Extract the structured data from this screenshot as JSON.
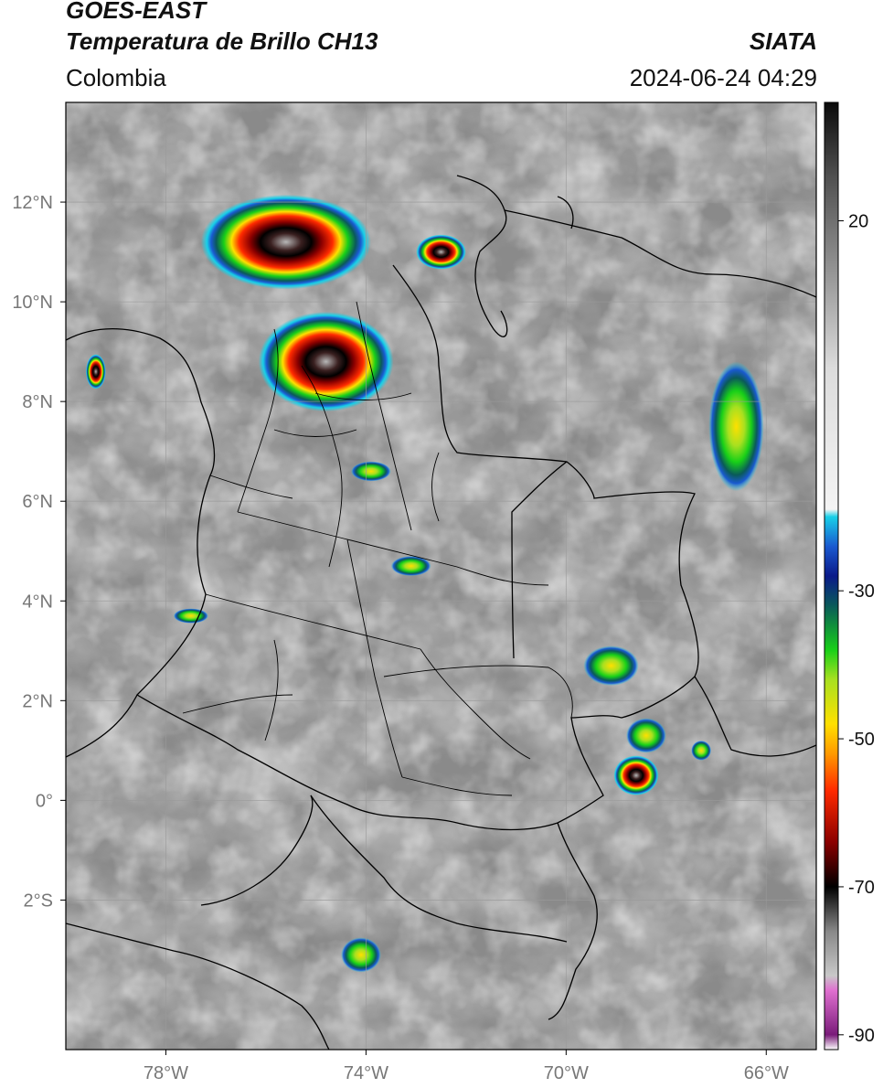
{
  "header": {
    "satellite": "GOES-EAST",
    "product": "Temperatura de Brillo CH13",
    "region": "Colombia",
    "agency": "SIATA",
    "datetime": "2024-06-24 04:29"
  },
  "map": {
    "projection": "lat-lon",
    "lon_range": [
      -80,
      -65
    ],
    "lat_range": [
      -5,
      14
    ],
    "lon_ticks": [
      {
        "value": -78,
        "label": "78°W"
      },
      {
        "value": -74,
        "label": "74°W"
      },
      {
        "value": -70,
        "label": "70°W"
      },
      {
        "value": -66,
        "label": "66°W"
      }
    ],
    "lat_ticks": [
      {
        "value": 12,
        "label": "12°N"
      },
      {
        "value": 10,
        "label": "10°N"
      },
      {
        "value": 8,
        "label": "8°N"
      },
      {
        "value": 6,
        "label": "6°N"
      },
      {
        "value": 4,
        "label": "4°N"
      },
      {
        "value": 2,
        "label": "2°N"
      },
      {
        "value": 0,
        "label": "0°"
      },
      {
        "value": -2,
        "label": "2°S"
      }
    ],
    "grid": true,
    "background": "grayscale infrared brightness temperature",
    "convective_cells": [
      {
        "lon": -75.6,
        "lat": 11.2,
        "rx": 1.7,
        "ry": 0.95
      },
      {
        "lon": -74.8,
        "lat": 8.8,
        "rx": 1.35,
        "ry": 1.0
      },
      {
        "lon": -72.5,
        "lat": 11.0,
        "rx": 0.5,
        "ry": 0.35
      },
      {
        "lon": -79.4,
        "lat": 8.6,
        "rx": 0.2,
        "ry": 0.35
      },
      {
        "lon": -66.6,
        "lat": 7.5,
        "rx": 0.55,
        "ry": 1.3
      },
      {
        "lon": -68.6,
        "lat": 0.5,
        "rx": 0.45,
        "ry": 0.4
      },
      {
        "lon": -68.4,
        "lat": 1.3,
        "rx": 0.4,
        "ry": 0.35
      },
      {
        "lon": -69.1,
        "lat": 2.7,
        "rx": 0.55,
        "ry": 0.4
      },
      {
        "lon": -73.1,
        "lat": 4.7,
        "rx": 0.4,
        "ry": 0.2
      },
      {
        "lon": -74.1,
        "lat": -3.1,
        "rx": 0.4,
        "ry": 0.35
      },
      {
        "lon": -77.5,
        "lat": 3.7,
        "rx": 0.35,
        "ry": 0.15
      },
      {
        "lon": -73.9,
        "lat": 6.6,
        "rx": 0.4,
        "ry": 0.2
      },
      {
        "lon": -67.3,
        "lat": 1.0,
        "rx": 0.2,
        "ry": 0.2
      }
    ]
  },
  "colorbar": {
    "units_range": [
      -92,
      36
    ],
    "ticks": [
      {
        "value": 20,
        "label": "20"
      },
      {
        "value": -30,
        "label": "-30"
      },
      {
        "value": -50,
        "label": "-50"
      },
      {
        "value": -70,
        "label": "-70"
      },
      {
        "value": -90,
        "label": "-90"
      }
    ],
    "stops": [
      {
        "value": -92,
        "color": "#ffffff"
      },
      {
        "value": -90,
        "color": "#7a1c7a"
      },
      {
        "value": -84,
        "color": "#e070d0"
      },
      {
        "value": -82,
        "color": "#c8c8c8"
      },
      {
        "value": -76,
        "color": "#888888"
      },
      {
        "value": -70,
        "color": "#000000"
      },
      {
        "value": -64,
        "color": "#8a0000"
      },
      {
        "value": -57,
        "color": "#ff2a00"
      },
      {
        "value": -52,
        "color": "#ff9a00"
      },
      {
        "value": -48,
        "color": "#ffe000"
      },
      {
        "value": -42,
        "color": "#a8e020"
      },
      {
        "value": -38,
        "color": "#18d018"
      },
      {
        "value": -32,
        "color": "#0a5a5a"
      },
      {
        "value": -28,
        "color": "#0a1a8a"
      },
      {
        "value": -24,
        "color": "#1a5ad0"
      },
      {
        "value": -20,
        "color": "#18d0e8"
      },
      {
        "value": -19,
        "color": "#f4f4f4"
      },
      {
        "value": 0,
        "color": "#dcdcdc"
      },
      {
        "value": 14,
        "color": "#909090"
      },
      {
        "value": 26,
        "color": "#505050"
      },
      {
        "value": 36,
        "color": "#0a0a0a"
      }
    ]
  }
}
